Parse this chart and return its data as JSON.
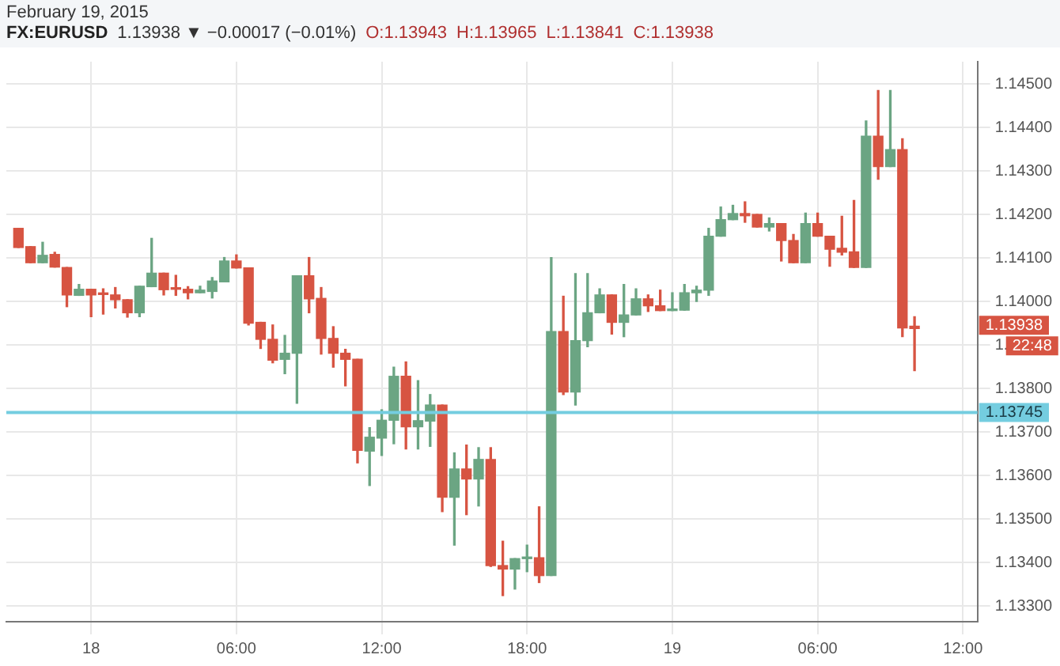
{
  "chart_data": {
    "type": "candlestick",
    "title": "FX:EURUSD",
    "subtitle": "1.13938 ▼ −0.00017 (−0.01%)",
    "annotations": [
      "February 19, 2015",
      "O:1.13943",
      "H:1.13965",
      "L:1.13841",
      "C:1.13938",
      "1.13938",
      "22:48"
    ],
    "x": [
      "2015-02-17T21:00",
      "2015-02-17T21:30",
      "2015-02-17T22:00",
      "2015-02-17T22:30",
      "2015-02-17T23:00",
      "2015-02-17T23:30",
      "2015-02-18T00:00",
      "2015-02-18T00:30",
      "2015-02-18T01:00",
      "2015-02-18T01:30",
      "2015-02-18T02:00",
      "2015-02-18T02:30",
      "2015-02-18T03:00",
      "2015-02-18T03:30",
      "2015-02-18T04:00",
      "2015-02-18T04:30",
      "2015-02-18T05:00",
      "2015-02-18T05:30",
      "2015-02-18T06:00",
      "2015-02-18T06:30",
      "2015-02-18T07:00",
      "2015-02-18T07:30",
      "2015-02-18T08:00",
      "2015-02-18T08:30",
      "2015-02-18T09:00",
      "2015-02-18T09:30",
      "2015-02-18T10:00",
      "2015-02-18T10:30",
      "2015-02-18T11:00",
      "2015-02-18T11:30",
      "2015-02-18T12:00",
      "2015-02-18T12:30",
      "2015-02-18T13:00",
      "2015-02-18T13:30",
      "2015-02-18T14:00",
      "2015-02-18T14:30",
      "2015-02-18T15:00",
      "2015-02-18T15:30",
      "2015-02-18T16:00",
      "2015-02-18T16:30",
      "2015-02-18T17:00",
      "2015-02-18T17:30",
      "2015-02-18T18:00",
      "2015-02-18T18:30",
      "2015-02-18T19:00",
      "2015-02-18T19:30",
      "2015-02-18T20:00",
      "2015-02-18T20:30",
      "2015-02-18T21:00",
      "2015-02-18T21:30",
      "2015-02-18T22:00",
      "2015-02-18T22:30",
      "2015-02-18T23:00",
      "2015-02-18T23:30",
      "2015-02-19T00:00",
      "2015-02-19T00:30",
      "2015-02-19T01:00",
      "2015-02-19T01:30",
      "2015-02-19T02:00",
      "2015-02-19T02:30",
      "2015-02-19T03:00",
      "2015-02-19T03:30",
      "2015-02-19T04:00",
      "2015-02-19T04:30",
      "2015-02-19T05:00",
      "2015-02-19T05:30",
      "2015-02-19T06:00",
      "2015-02-19T06:30",
      "2015-02-19T07:00",
      "2015-02-19T07:30",
      "2015-02-19T08:00",
      "2015-02-19T08:30",
      "2015-02-19T09:00",
      "2015-02-19T09:30",
      "2015-02-19T10:00"
    ],
    "ohlc": [
      [
        1.14168,
        1.14168,
        1.14124,
        1.14124
      ],
      [
        1.14126,
        1.14126,
        1.14089,
        1.14089
      ],
      [
        1.14089,
        1.14136,
        1.14089,
        1.14106
      ],
      [
        1.14108,
        1.14113,
        1.14079,
        1.14079
      ],
      [
        1.14078,
        1.14078,
        1.13988,
        1.14015
      ],
      [
        1.14014,
        1.14039,
        1.14014,
        1.14028
      ],
      [
        1.14028,
        1.14028,
        1.13965,
        1.14015
      ],
      [
        1.14016,
        1.14029,
        1.13971,
        1.14016
      ],
      [
        1.14015,
        1.14032,
        1.13985,
        1.14004
      ],
      [
        1.14004,
        1.14004,
        1.13964,
        1.13974
      ],
      [
        1.13974,
        1.14035,
        1.13965,
        1.14035
      ],
      [
        1.14034,
        1.14145,
        1.14034,
        1.14065
      ],
      [
        1.14065,
        1.14065,
        1.14015,
        1.14027
      ],
      [
        1.14028,
        1.1406,
        1.14014,
        1.14028
      ],
      [
        1.14028,
        1.14034,
        1.14006,
        1.1402
      ],
      [
        1.1402,
        1.14035,
        1.1402,
        1.14026
      ],
      [
        1.14023,
        1.14055,
        1.14008,
        1.14047
      ],
      [
        1.14045,
        1.14101,
        1.14045,
        1.14093
      ],
      [
        1.14093,
        1.14107,
        1.14077,
        1.14077
      ],
      [
        1.14077,
        1.14077,
        1.13946,
        1.1395
      ],
      [
        1.13952,
        1.13952,
        1.13892,
        1.13913
      ],
      [
        1.13913,
        1.13946,
        1.13859,
        1.13865
      ],
      [
        1.13867,
        1.13922,
        1.13834,
        1.13881
      ],
      [
        1.13881,
        1.14059,
        1.13766,
        1.14059
      ],
      [
        1.14059,
        1.14101,
        1.13974,
        1.14006
      ],
      [
        1.14007,
        1.14032,
        1.13879,
        1.13915
      ],
      [
        1.13915,
        1.13942,
        1.13849,
        1.13881
      ],
      [
        1.13881,
        1.1389,
        1.13806,
        1.13867
      ],
      [
        1.13867,
        1.13867,
        1.13629,
        1.13658
      ],
      [
        1.13656,
        1.1371,
        1.13577,
        1.13688
      ],
      [
        1.13686,
        1.13751,
        1.13646,
        1.13727
      ],
      [
        1.13727,
        1.13849,
        1.13673,
        1.13828
      ],
      [
        1.13828,
        1.13861,
        1.13661,
        1.13712
      ],
      [
        1.13712,
        1.13818,
        1.13661,
        1.13726
      ],
      [
        1.13725,
        1.13786,
        1.13667,
        1.13762
      ],
      [
        1.13762,
        1.13762,
        1.13517,
        1.1355
      ],
      [
        1.1355,
        1.13652,
        1.1344,
        1.13615
      ],
      [
        1.13615,
        1.1367,
        1.1351,
        1.13592
      ],
      [
        1.13592,
        1.13664,
        1.1353,
        1.13637
      ],
      [
        1.13637,
        1.13664,
        1.13391,
        1.13393
      ],
      [
        1.13393,
        1.13449,
        1.13324,
        1.13385
      ],
      [
        1.13385,
        1.13409,
        1.13339,
        1.13409
      ],
      [
        1.13409,
        1.1344,
        1.13379,
        1.13411
      ],
      [
        1.13411,
        1.13528,
        1.13354,
        1.1337
      ],
      [
        1.1337,
        1.14101,
        1.1337,
        1.13931
      ],
      [
        1.13931,
        1.14012,
        1.13786,
        1.13792
      ],
      [
        1.13792,
        1.14064,
        1.13762,
        1.1391
      ],
      [
        1.1391,
        1.14064,
        1.13896,
        1.13974
      ],
      [
        1.13974,
        1.14029,
        1.13974,
        1.14015
      ],
      [
        1.14015,
        1.14015,
        1.13925,
        1.13952
      ],
      [
        1.13952,
        1.14039,
        1.13919,
        1.13969
      ],
      [
        1.13969,
        1.14029,
        1.13969,
        1.14006
      ],
      [
        1.14006,
        1.14015,
        1.13977,
        1.1399
      ],
      [
        1.1399,
        1.14026,
        1.13979,
        1.13979
      ],
      [
        1.13979,
        1.1402,
        1.13979,
        1.1398
      ],
      [
        1.1398,
        1.14039,
        1.1398,
        1.1402
      ],
      [
        1.1402,
        1.14035,
        1.14,
        1.14026
      ],
      [
        1.14026,
        1.14168,
        1.14014,
        1.1415
      ],
      [
        1.1415,
        1.14217,
        1.1415,
        1.14188
      ],
      [
        1.14188,
        1.14221,
        1.14188,
        1.14202
      ],
      [
        1.14202,
        1.14229,
        1.14182,
        1.14197
      ],
      [
        1.142,
        1.142,
        1.14171,
        1.14171
      ],
      [
        1.14171,
        1.14192,
        1.14162,
        1.14179
      ],
      [
        1.14179,
        1.14179,
        1.14093,
        1.1414
      ],
      [
        1.1414,
        1.14154,
        1.14089,
        1.14089
      ],
      [
        1.14089,
        1.14203,
        1.14089,
        1.14179
      ],
      [
        1.14179,
        1.14203,
        1.1415,
        1.1415
      ],
      [
        1.1415,
        1.1415,
        1.14081,
        1.1412
      ],
      [
        1.14122,
        1.14196,
        1.14107,
        1.14113
      ],
      [
        1.14114,
        1.14232,
        1.14078,
        1.14078
      ],
      [
        1.14078,
        1.14415,
        1.14078,
        1.1438
      ],
      [
        1.1438,
        1.14485,
        1.14281,
        1.1431
      ],
      [
        1.1431,
        1.14485,
        1.1431,
        1.14349
      ],
      [
        1.14349,
        1.14374,
        1.13919,
        1.13939
      ],
      [
        1.13943,
        1.13965,
        1.13841,
        1.13938
      ]
    ],
    "colors": [
      "#d75442",
      "#d75442",
      "#6ba583",
      "#d75442",
      "#d75442",
      "#6ba583",
      "#d75442",
      "#d75442",
      "#d75442",
      "#d75442",
      "#6ba583",
      "#6ba583",
      "#d75442",
      "#d75442",
      "#d75442",
      "#6ba583",
      "#6ba583",
      "#6ba583",
      "#d75442",
      "#d75442",
      "#d75442",
      "#d75442",
      "#6ba583",
      "#6ba583",
      "#d75442",
      "#d75442",
      "#d75442",
      "#d75442",
      "#d75442",
      "#6ba583",
      "#6ba583",
      "#6ba583",
      "#d75442",
      "#6ba583",
      "#6ba583",
      "#d75442",
      "#6ba583",
      "#d75442",
      "#6ba583",
      "#d75442",
      "#d75442",
      "#6ba583",
      "#6ba583",
      "#d75442",
      "#6ba583",
      "#d75442",
      "#6ba583",
      "#6ba583",
      "#6ba583",
      "#d75442",
      "#6ba583",
      "#6ba583",
      "#d75442",
      "#d75442",
      "#6ba583",
      "#6ba583",
      "#6ba583",
      "#6ba583",
      "#6ba583",
      "#6ba583",
      "#d75442",
      "#d75442",
      "#6ba583",
      "#d75442",
      "#d75442",
      "#6ba583",
      "#d75442",
      "#d75442",
      "#d75442",
      "#d75442",
      "#6ba583",
      "#d75442",
      "#6ba583",
      "#d75442",
      "#d75442"
    ],
    "xlim": [
      "2015-02-17T20:30",
      "2015-02-19T12:36"
    ],
    "xticks": [
      {
        "value": "2015-02-18T00:00",
        "label": "18"
      },
      {
        "value": "2015-02-18T06:00",
        "label": "06:00"
      },
      {
        "value": "2015-02-18T12:00",
        "label": "12:00"
      },
      {
        "value": "2015-02-18T18:00",
        "label": "18:00"
      },
      {
        "value": "2015-02-19T00:00",
        "label": "19"
      },
      {
        "value": "2015-02-19T06:00",
        "label": "06:00"
      },
      {
        "value": "2015-02-19T12:00",
        "label": "12:00"
      }
    ],
    "ylim": [
      1.13264,
      1.14551
    ],
    "yticks": [
      {
        "value": 1.133,
        "label": "1.13300"
      },
      {
        "value": 1.134,
        "label": "1.13400"
      },
      {
        "value": 1.135,
        "label": "1.13500"
      },
      {
        "value": 1.136,
        "label": "1.13600"
      },
      {
        "value": 1.137,
        "label": "1.13700"
      },
      {
        "value": 1.138,
        "label": "1.13800"
      },
      {
        "value": 1.139,
        "label": "1."
      },
      {
        "value": 1.14,
        "label": "1.14000"
      },
      {
        "value": 1.141,
        "label": "1.14100"
      },
      {
        "value": 1.142,
        "label": "1.14200"
      },
      {
        "value": 1.143,
        "label": "1.14300"
      },
      {
        "value": 1.144,
        "label": "1.14400"
      },
      {
        "value": 1.145,
        "label": "1.14500"
      }
    ],
    "ref_lines": [
      {
        "axis": "y",
        "value": 1.13745,
        "label": "1.13745",
        "color": "#74cde0"
      }
    ],
    "grid": true,
    "legend": false
  }
}
